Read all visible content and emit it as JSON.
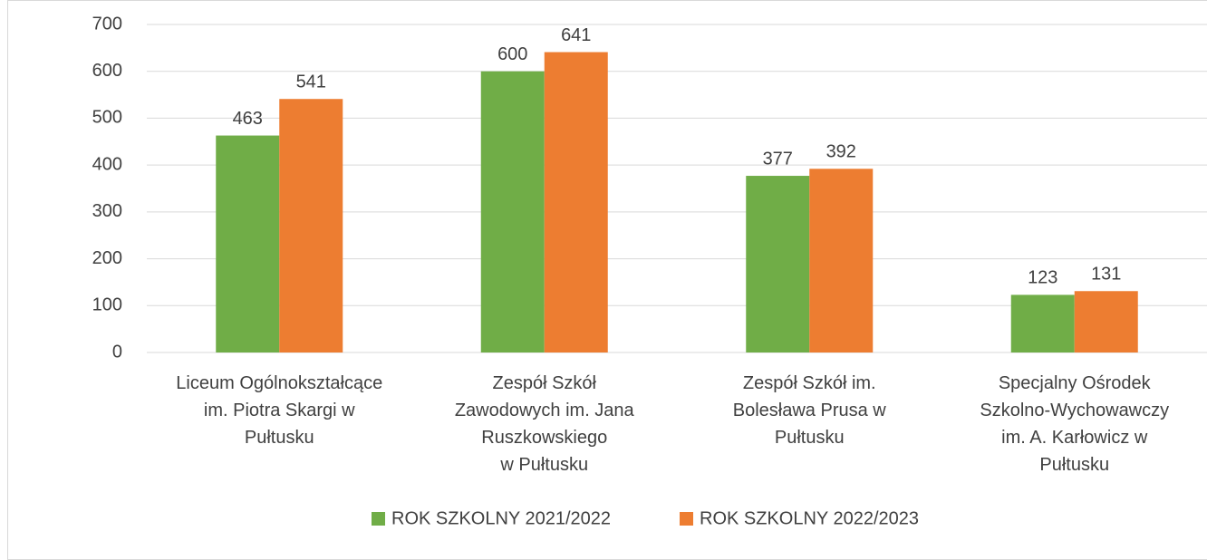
{
  "chart_data": {
    "type": "bar",
    "categories": [
      "Liceum Ogólnokształcące\nim. Piotra Skargi w\nPułtusku",
      "Zespół Szkół\nZawodowych im. Jana\nRuszkowskiego\nw Pułtusku",
      "Zespół Szkół im.\nBolesława Prusa w\nPułtusku",
      "Specjalny Ośrodek\nSzkolno-Wychowawczy\nim. A. Karłowicz w\nPułtusku"
    ],
    "series": [
      {
        "name": "ROK SZKOLNY 2021/2022",
        "color": "#70ad47",
        "values": [
          463,
          600,
          377,
          123
        ]
      },
      {
        "name": "ROK SZKOLNY 2022/2023",
        "color": "#ed7d31",
        "values": [
          541,
          641,
          392,
          131
        ]
      }
    ],
    "ylim": [
      0,
      700
    ],
    "yticks": [
      0,
      100,
      200,
      300,
      400,
      500,
      600,
      700
    ],
    "grid": true,
    "legend": "bottom"
  }
}
